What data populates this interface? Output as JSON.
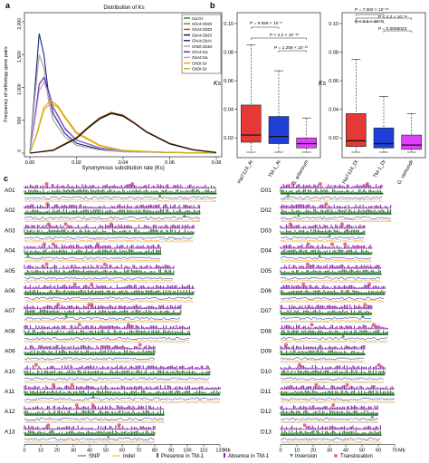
{
  "panel_labels": [
    "a",
    "b",
    "c"
  ],
  "panel_a": {
    "title": "Distribution of Ks",
    "xlabel": "Synonymous substitution rate (Ks)",
    "ylabel": "Frequency of orthology gene pairs",
    "legend": [
      {
        "label": "Ga:Gr",
        "color": "#2e7d32"
      },
      {
        "label": "GhAt:GhDt",
        "color": "#8b6914"
      },
      {
        "label": "GhAt:GbDt",
        "color": "#d32f2f"
      },
      {
        "label": "GbAt:GbDt",
        "color": "#111111"
      },
      {
        "label": "GhAt:GbAt",
        "color": "#1a237e"
      },
      {
        "label": "GhDt:GbDt",
        "color": "#9e9e9e"
      },
      {
        "label": "GhAt:Ga",
        "color": "#6a1b9a"
      },
      {
        "label": "GbAt:Ga",
        "color": "#b39ddb"
      },
      {
        "label": "GhDt:Gr",
        "color": "#ff9800"
      },
      {
        "label": "GbDt:Gr",
        "color": "#c8b400"
      }
    ]
  },
  "chart_data": [
    {
      "type": "line",
      "title": "Distribution of Ks",
      "xlabel": "Synonymous substitution rate (Ks)",
      "ylabel": "Frequency of orthology gene pairs",
      "xlim": [
        0,
        0.08
      ],
      "ylim": [
        0,
        2000
      ],
      "x_ticks": [
        "0.00",
        "0.02",
        "0.04",
        "0.06",
        "0.08"
      ],
      "y_ticks": [
        "0",
        "500",
        "1,000",
        "1,500",
        "2,000"
      ],
      "series": [
        {
          "name": "GhAt:GbAt",
          "color": "#1a237e",
          "x": [
            0,
            0.002,
            0.004,
            0.006,
            0.008,
            0.01,
            0.015,
            0.02,
            0.03,
            0.04,
            0.06,
            0.08
          ],
          "y": [
            0,
            900,
            1820,
            1500,
            900,
            600,
            300,
            150,
            60,
            30,
            10,
            0
          ]
        },
        {
          "name": "GhDt:GbDt",
          "color": "#9e9e9e",
          "x": [
            0,
            0.002,
            0.004,
            0.006,
            0.008,
            0.01,
            0.015,
            0.02,
            0.03,
            0.04,
            0.06,
            0.08
          ],
          "y": [
            0,
            800,
            1500,
            1300,
            800,
            500,
            250,
            120,
            50,
            20,
            8,
            0
          ]
        },
        {
          "name": "GhAt:Ga",
          "color": "#6a1b9a",
          "x": [
            0,
            0.002,
            0.004,
            0.006,
            0.008,
            0.01,
            0.015,
            0.02,
            0.03,
            0.04,
            0.06,
            0.08
          ],
          "y": [
            0,
            500,
            1050,
            1150,
            950,
            700,
            380,
            200,
            80,
            35,
            10,
            0
          ]
        },
        {
          "name": "GbAt:Ga",
          "color": "#b39ddb",
          "x": [
            0,
            0.002,
            0.004,
            0.006,
            0.008,
            0.01,
            0.015,
            0.02,
            0.03,
            0.04,
            0.06,
            0.08
          ],
          "y": [
            0,
            450,
            950,
            1080,
            900,
            680,
            360,
            190,
            75,
            30,
            10,
            0
          ]
        },
        {
          "name": "GhDt:Gr",
          "color": "#ff9800",
          "x": [
            0,
            0.003,
            0.006,
            0.009,
            0.012,
            0.015,
            0.02,
            0.03,
            0.04,
            0.06,
            0.08
          ],
          "y": [
            0,
            300,
            700,
            800,
            720,
            560,
            320,
            120,
            40,
            10,
            0
          ]
        },
        {
          "name": "GbDt:Gr",
          "color": "#c8b400",
          "x": [
            0,
            0.003,
            0.006,
            0.009,
            0.012,
            0.015,
            0.02,
            0.03,
            0.04,
            0.06,
            0.08
          ],
          "y": [
            0,
            280,
            660,
            760,
            700,
            540,
            300,
            110,
            40,
            10,
            0
          ]
        },
        {
          "name": "Ga:Gr",
          "color": "#2e7d32",
          "x": [
            0,
            0.01,
            0.02,
            0.025,
            0.03,
            0.035,
            0.04,
            0.045,
            0.05,
            0.06,
            0.07,
            0.08
          ],
          "y": [
            0,
            40,
            220,
            380,
            520,
            600,
            560,
            450,
            320,
            140,
            50,
            10
          ]
        },
        {
          "name": "GhAt:GhDt",
          "color": "#8b6914",
          "x": [
            0,
            0.01,
            0.02,
            0.025,
            0.03,
            0.035,
            0.04,
            0.045,
            0.05,
            0.06,
            0.07,
            0.08
          ],
          "y": [
            0,
            50,
            240,
            400,
            540,
            620,
            580,
            460,
            330,
            150,
            55,
            10
          ]
        },
        {
          "name": "GhAt:GbDt",
          "color": "#d32f2f",
          "x": [
            0,
            0.01,
            0.02,
            0.025,
            0.03,
            0.035,
            0.04,
            0.045,
            0.05,
            0.06,
            0.07,
            0.08
          ],
          "y": [
            0,
            45,
            230,
            390,
            530,
            610,
            570,
            455,
            325,
            145,
            52,
            10
          ]
        },
        {
          "name": "GbAt:GbDt",
          "color": "#111111",
          "x": [
            0,
            0.01,
            0.02,
            0.025,
            0.03,
            0.035,
            0.04,
            0.045,
            0.05,
            0.06,
            0.07,
            0.08
          ],
          "y": [
            0,
            42,
            225,
            385,
            525,
            605,
            565,
            450,
            320,
            142,
            50,
            10
          ]
        }
      ]
    },
    {
      "type": "box",
      "ylabel": "Ks",
      "ylim": [
        0.01,
        0.1
      ],
      "y_ticks": [
        "0.02",
        "0.04",
        "0.06",
        "0.08",
        "0.10"
      ],
      "categories": [
        "Hai7124_At",
        "TM-1_At",
        "G. arboreum"
      ],
      "boxes": [
        {
          "name": "Hai7124_At",
          "color": "#e53935",
          "min": 0.01,
          "q1": 0.017,
          "median": 0.022,
          "q3": 0.043,
          "max": 0.085
        },
        {
          "name": "TM-1_At",
          "color": "#1e40d8",
          "min": 0.01,
          "q1": 0.016,
          "median": 0.021,
          "q3": 0.035,
          "max": 0.067
        },
        {
          "name": "G. arboreum",
          "color": "#e040fb",
          "min": 0.01,
          "q1": 0.013,
          "median": 0.016,
          "q3": 0.02,
          "max": 0.034
        }
      ],
      "annotations": [
        "P = 9.059 × 10⁻⁶",
        "P < 2.2 × 10⁻¹⁶",
        "P = 1.209 × 10⁻¹²"
      ]
    },
    {
      "type": "box",
      "ylabel": "Ks",
      "ylim": [
        0.01,
        0.1
      ],
      "y_ticks": [
        "0.02",
        "0.04",
        "0.06",
        "0.08",
        "0.10"
      ],
      "categories": [
        "Hai7124_Dt",
        "TM-1_Dt",
        "G. raimondii"
      ],
      "boxes": [
        {
          "name": "Hai7124_Dt",
          "color": "#e53935",
          "min": 0.01,
          "q1": 0.014,
          "median": 0.018,
          "q3": 0.037,
          "max": 0.075
        },
        {
          "name": "TM-1_Dt",
          "color": "#1e40d8",
          "min": 0.01,
          "q1": 0.013,
          "median": 0.016,
          "q3": 0.027,
          "max": 0.049
        },
        {
          "name": "G. raimondii",
          "color": "#e040fb",
          "min": 0.01,
          "q1": 0.012,
          "median": 0.015,
          "q3": 0.022,
          "max": 0.037
        }
      ],
      "annotations": [
        "P = 7.002 × 10⁻¹⁵",
        "P < 2.2 × 10⁻¹⁶",
        "P = 0.0005023",
        "P < 2.2 × 10⁻¹⁶"
      ]
    }
  ],
  "panel_c": {
    "left_chromosomes": [
      "A01",
      "A02",
      "A03",
      "A04",
      "A05",
      "A06",
      "A07",
      "A08",
      "A09",
      "A10",
      "A11",
      "A12",
      "A13"
    ],
    "right_chromosomes": [
      "D01",
      "D02",
      "D03",
      "D04",
      "D05",
      "D06",
      "D07",
      "D08",
      "D09",
      "D10",
      "D11",
      "D12",
      "D13"
    ],
    "left_ticks": [
      "0",
      "10",
      "20",
      "30",
      "40",
      "50",
      "60",
      "70",
      "80",
      "90",
      "100",
      "110",
      "120"
    ],
    "right_ticks": [
      "0",
      "10",
      "20",
      "30",
      "40",
      "50",
      "60",
      "70"
    ],
    "unit": "Mb",
    "legend": [
      {
        "label": "SNP",
        "color": "#3949ab"
      },
      {
        "label": "Indel",
        "color": "#f9a825"
      },
      {
        "label": "Presence in TM-1",
        "color": "#2e7d32"
      },
      {
        "label": "Absence in TM-1",
        "color": "#8e24aa"
      },
      {
        "label": "Inversion",
        "color": "#43a047"
      },
      {
        "label": "Translocation",
        "color": "#e57373"
      }
    ]
  }
}
